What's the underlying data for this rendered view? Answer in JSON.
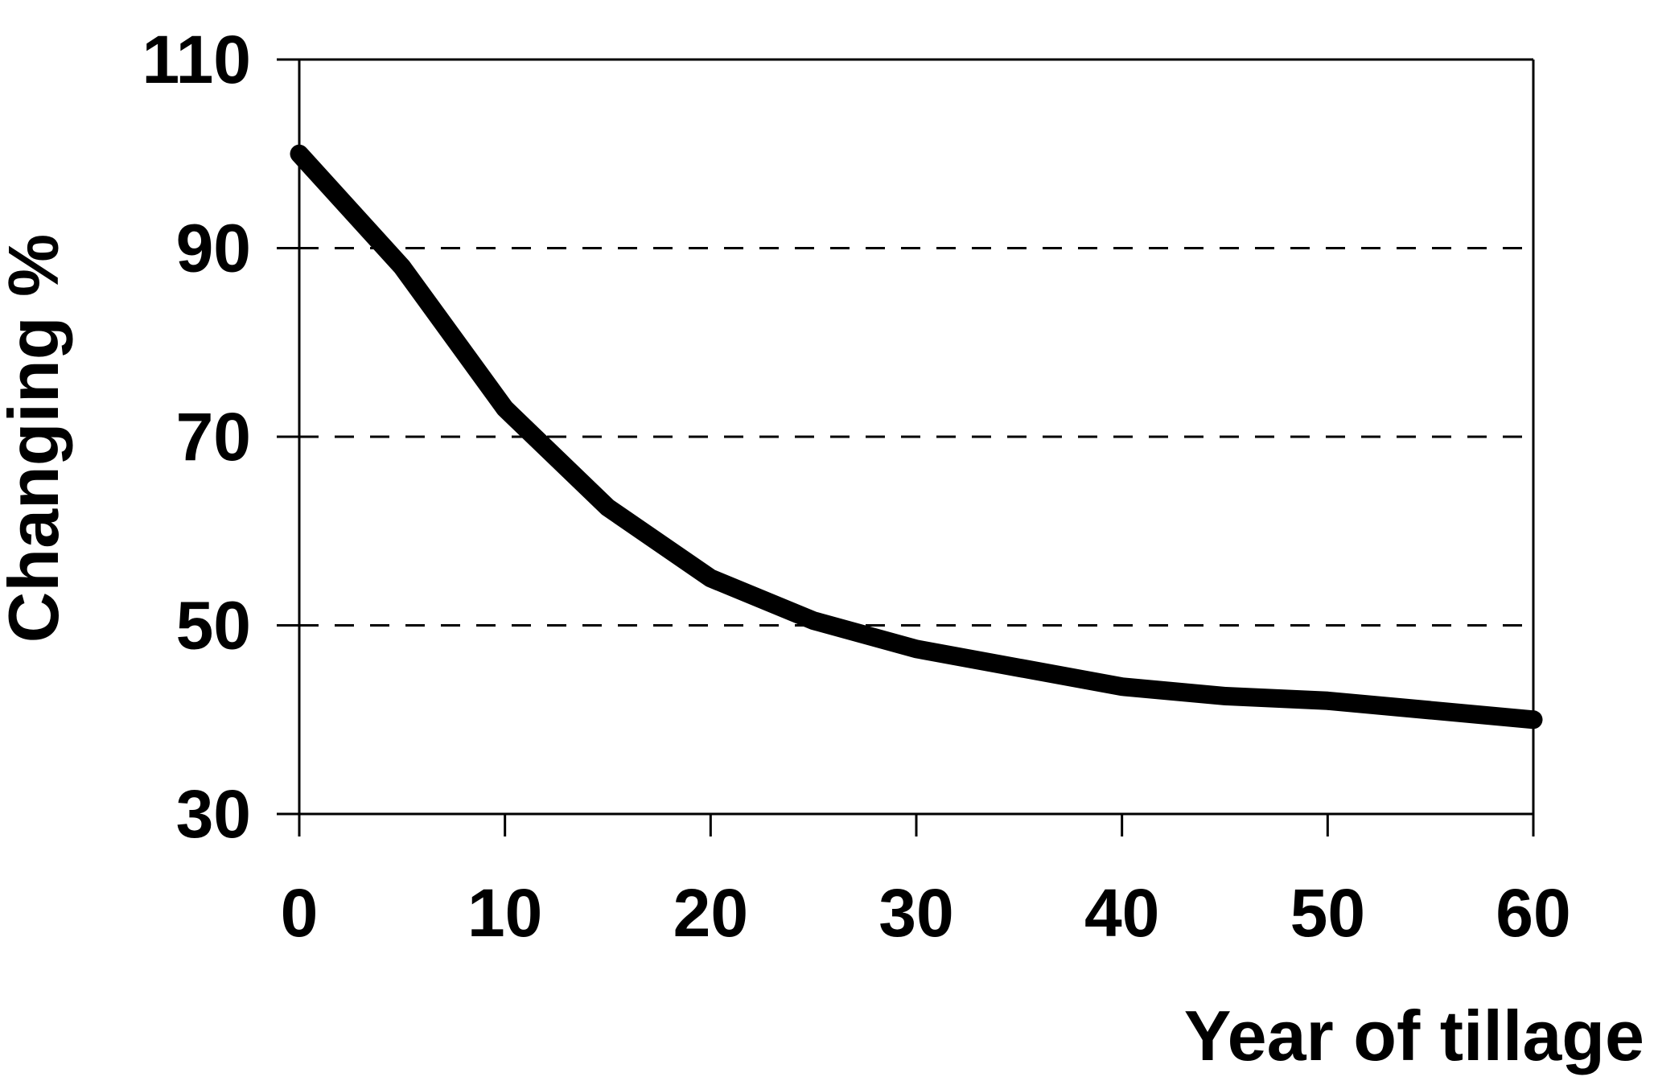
{
  "chart_data": {
    "type": "line",
    "title": "",
    "xlabel": "Year of tillage",
    "ylabel": "Changing %",
    "x": [
      0,
      5,
      10,
      15,
      20,
      25,
      30,
      35,
      40,
      45,
      50,
      55,
      60
    ],
    "series": [
      {
        "name": "Changing %",
        "values": [
          100,
          88,
          73,
          62.5,
          55,
          50.5,
          47.5,
          45.5,
          43.5,
          42.5,
          42,
          41,
          40
        ]
      }
    ],
    "xlim": [
      0,
      60
    ],
    "ylim": [
      30,
      110
    ],
    "x_ticks": [
      "0",
      "10",
      "20",
      "30",
      "40",
      "50",
      "60"
    ],
    "y_ticks": [
      "30",
      "50",
      "70",
      "90",
      "110"
    ],
    "grid": "horizontal-dashed",
    "dashed_gridlines_at": [
      50,
      70,
      90
    ],
    "solid_border_lines": [
      "top",
      "bottom",
      "left",
      "right"
    ],
    "legend_position": "none",
    "line_color": "#000000",
    "axis_color": "#000000",
    "background_color": "#ffffff"
  }
}
